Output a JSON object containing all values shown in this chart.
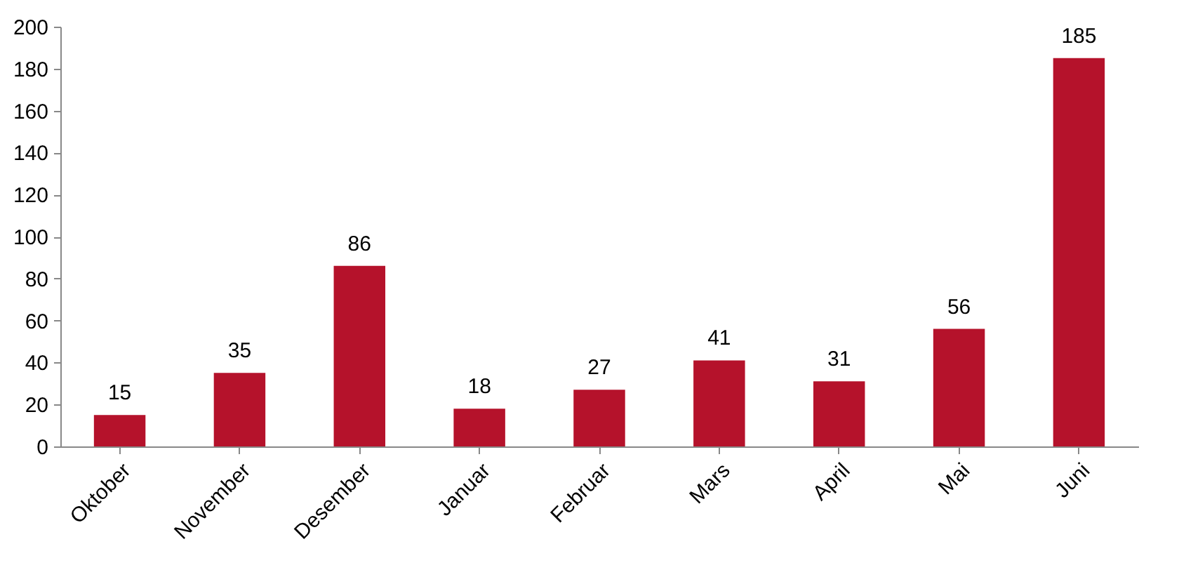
{
  "chart_data": {
    "type": "bar",
    "categories": [
      "Oktober",
      "November",
      "Desember",
      "Januar",
      "Februar",
      "Mars",
      "April",
      "Mai",
      "Juni"
    ],
    "values": [
      15,
      35,
      86,
      18,
      27,
      41,
      31,
      56,
      185
    ],
    "color": "#b5122b",
    "ylim": [
      0,
      200
    ],
    "yticks": [
      0,
      20,
      40,
      60,
      80,
      100,
      120,
      140,
      160,
      180,
      200
    ],
    "grid": false,
    "data_labels": true
  }
}
